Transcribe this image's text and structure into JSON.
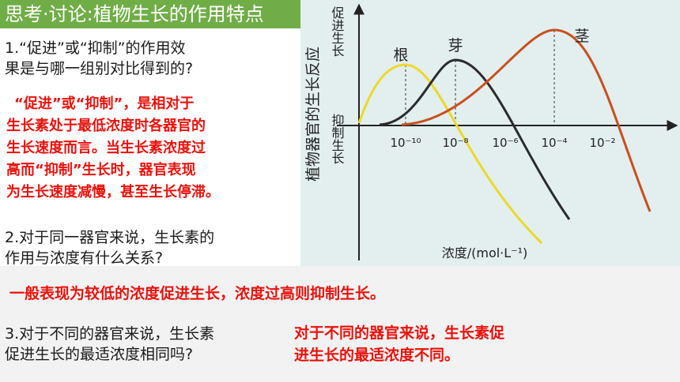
{
  "header": {
    "title": "思考·讨论:植物生长的作用特点"
  },
  "questions": {
    "q1": {
      "line1": "1.“促进”或“抑制”的作用效",
      "line2": "果是与哪一组别对比得到的?"
    },
    "a1": [
      "“促进”或“抑制”，是相对于",
      "生长素处于最低浓度时各器官的",
      "生长速度而言。当生长素浓度过",
      "高而“抑制”生长时，器官表现",
      "为生长速度减慢，甚至生长停滞。"
    ],
    "q2": {
      "line1": "2.对于同一器官来说，生长素的",
      "line2": "作用与浓度有什么关系?"
    },
    "a2": "一般表现为较低的浓度促进生长，浓度过高则抑制生长。",
    "q3": {
      "line1": "3.对于不同的器官来说，生长素",
      "line2": "促进生长的最适浓度相同吗?"
    },
    "a3": {
      "line1": "对于不同的器官来说，生长素促",
      "line2": "进生长的最适浓度不同。"
    }
  },
  "figure": {
    "y_axis_title": "植物器官的生长反应",
    "promote_label": "促进生长",
    "inhibit_label": "抑制生长",
    "x_axis_title": "浓度/(mol·L⁻¹)",
    "ticks": [
      "10⁻¹⁰",
      "10⁻⁸",
      "10⁻⁶",
      "10⁻⁴",
      "10⁻²"
    ],
    "curves": {
      "root": {
        "label": "根",
        "color": "#ecd92a"
      },
      "bud": {
        "label": "芽",
        "color": "#2b2b2b"
      },
      "stem": {
        "label": "茎",
        "color": "#c8501e"
      }
    },
    "background_color": "#e3eeef"
  }
}
